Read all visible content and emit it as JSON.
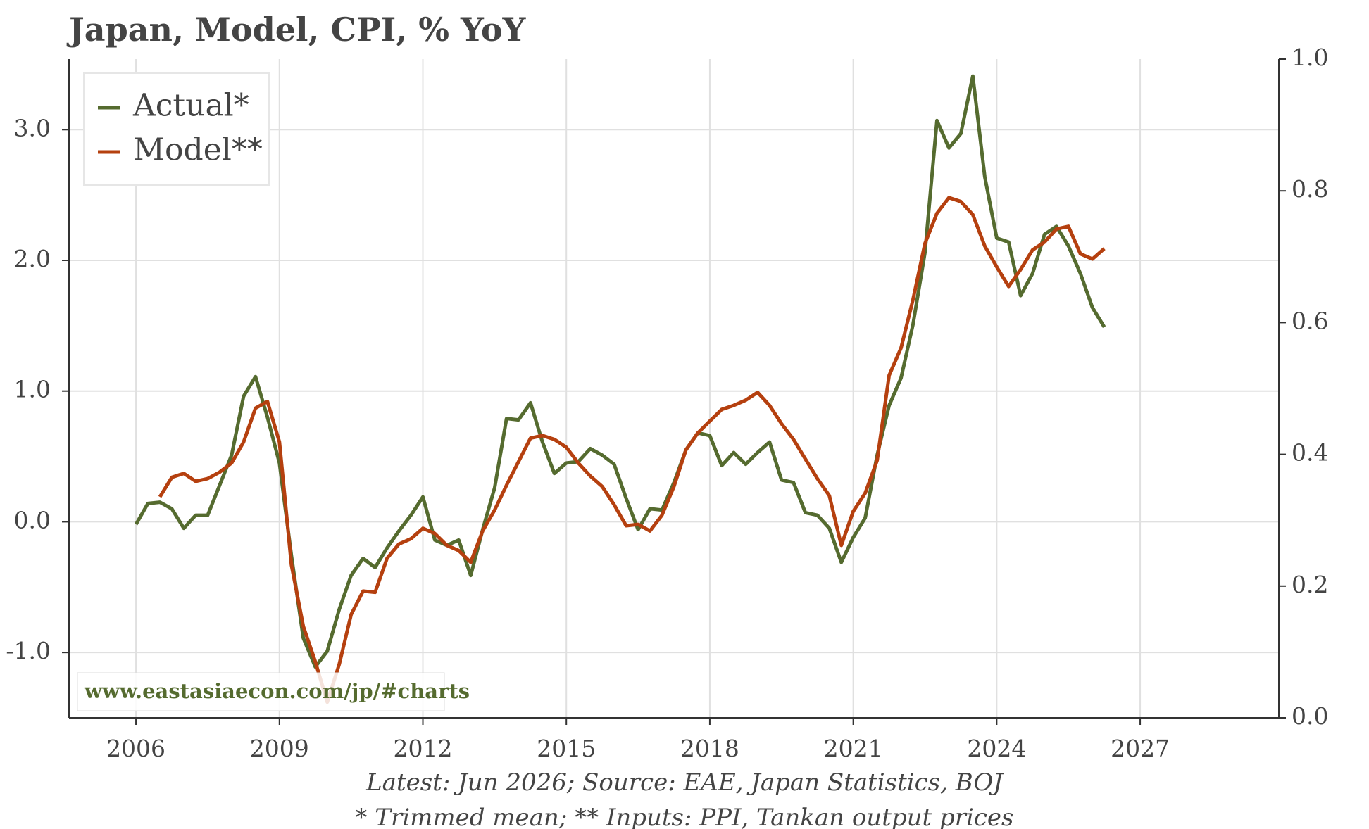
{
  "chart_data": {
    "type": "line",
    "title": "Japan, Model, CPI, % YoY",
    "footnotes": [
      "Latest: Jun 2026; Source: EAE, Japan Statistics, BOJ",
      "* Trimmed mean; ** Inputs: PPI, Tankan output prices"
    ],
    "watermark": "www.eastasiaecon.com/jp/#charts",
    "legend": "upper left",
    "grid": true,
    "xlim": [
      2004.6,
      2029.9
    ],
    "xticks": [
      2006,
      2009,
      2012,
      2015,
      2018,
      2021,
      2024,
      2027
    ],
    "ylim": [
      -1.5,
      3.54
    ],
    "yticks": [
      {
        "value": -1,
        "label": "-1.0"
      },
      {
        "value": 0,
        "label": "0.0"
      },
      {
        "value": 1,
        "label": "1.0"
      },
      {
        "value": 2,
        "label": "2.0"
      },
      {
        "value": 3,
        "label": "3.0"
      }
    ],
    "y2lim": [
      0,
      1
    ],
    "y2ticks": [
      {
        "value": 0,
        "label": "0.0"
      },
      0.2,
      0.4,
      0.6,
      0.8,
      {
        "value": 1,
        "label": "1.0"
      }
    ],
    "x": [
      2006,
      2006.25,
      2006.5,
      2006.75,
      2007,
      2007.25,
      2007.5,
      2007.75,
      2008,
      2008.25,
      2008.5,
      2008.75,
      2009,
      2009.25,
      2009.5,
      2009.75,
      2010,
      2010.25,
      2010.5,
      2010.75,
      2011,
      2011.25,
      2011.5,
      2011.75,
      2012,
      2012.25,
      2012.5,
      2012.75,
      2013,
      2013.25,
      2013.5,
      2013.75,
      2014,
      2014.25,
      2014.5,
      2014.75,
      2015,
      2015.25,
      2015.5,
      2015.75,
      2016,
      2016.25,
      2016.5,
      2016.75,
      2017,
      2017.25,
      2017.5,
      2017.75,
      2018,
      2018.25,
      2018.5,
      2018.75,
      2019,
      2019.25,
      2019.5,
      2019.75,
      2020,
      2020.25,
      2020.5,
      2020.75,
      2021,
      2021.25,
      2021.5,
      2021.75,
      2022,
      2022.25,
      2022.5,
      2022.75,
      2023,
      2023.25,
      2023.5,
      2023.75,
      2024,
      2024.25,
      2024.5,
      2024.75,
      2025,
      2025.25,
      2025.5,
      2025.75,
      2026,
      2026.25
    ],
    "series": [
      {
        "name": "Actual*",
        "color": "#556b2f",
        "values": [
          -0.02,
          0.14,
          0.15,
          0.1,
          -0.05,
          0.05,
          0.05,
          0.28,
          0.51,
          0.96,
          1.11,
          0.8,
          0.45,
          -0.26,
          -0.89,
          -1.11,
          -0.99,
          -0.67,
          -0.41,
          -0.28,
          -0.35,
          -0.2,
          -0.07,
          0.05,
          0.19,
          -0.14,
          -0.18,
          -0.14,
          -0.41,
          -0.06,
          0.26,
          0.79,
          0.78,
          0.91,
          0.61,
          0.37,
          0.45,
          0.46,
          0.56,
          0.51,
          0.44,
          0.18,
          -0.06,
          0.1,
          0.09,
          0.3,
          0.55,
          0.68,
          0.66,
          0.43,
          0.53,
          0.44,
          0.53,
          0.61,
          0.32,
          0.3,
          0.07,
          0.05,
          -0.05,
          -0.31,
          -0.12,
          0.03,
          0.51,
          0.89,
          1.1,
          1.51,
          2.06,
          3.07,
          2.86,
          2.97,
          3.41,
          2.64,
          2.17,
          2.14,
          1.73,
          1.9,
          2.2,
          2.26,
          2.11,
          1.9,
          1.64,
          1.49
        ]
      },
      {
        "name": "Model**",
        "color": "#b5400f",
        "values": [
          null,
          null,
          0.19,
          0.34,
          0.37,
          0.31,
          0.33,
          0.38,
          0.45,
          0.61,
          0.87,
          0.92,
          0.61,
          -0.33,
          -0.8,
          -1.07,
          -1.38,
          -1.09,
          -0.71,
          -0.53,
          -0.54,
          -0.28,
          -0.17,
          -0.13,
          -0.05,
          -0.09,
          -0.18,
          -0.22,
          -0.31,
          -0.07,
          0.09,
          0.28,
          0.46,
          0.64,
          0.66,
          0.63,
          0.57,
          0.45,
          0.35,
          0.27,
          0.13,
          -0.03,
          -0.02,
          -0.07,
          0.05,
          0.27,
          0.55,
          0.68,
          0.77,
          0.86,
          0.89,
          0.93,
          0.99,
          0.89,
          0.75,
          0.63,
          0.48,
          0.33,
          0.2,
          -0.18,
          0.08,
          0.22,
          0.47,
          1.12,
          1.33,
          1.7,
          2.13,
          2.36,
          2.48,
          2.45,
          2.35,
          2.11,
          1.95,
          1.8,
          1.93,
          2.08,
          2.14,
          2.24,
          2.26,
          2.05,
          2.01,
          2.09
        ]
      }
    ]
  }
}
